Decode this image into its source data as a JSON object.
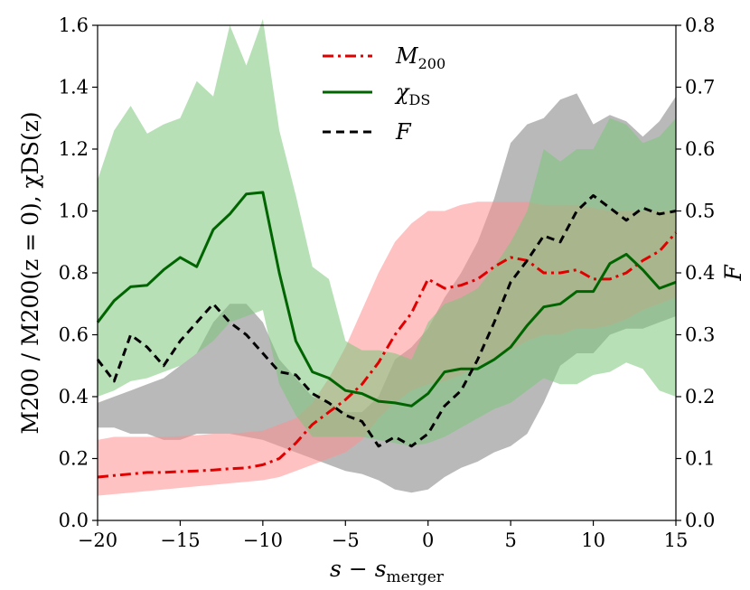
{
  "chart_data": {
    "type": "line",
    "xlabel": "s − s_merger",
    "xlabel_main": "s − s",
    "xlabel_sub": "merger",
    "ylabel_left": "M200 / M200(z = 0),  χDS(z)",
    "ylabel_right": "F",
    "xlim": [
      -20,
      15
    ],
    "ylim_left": [
      0.0,
      1.6
    ],
    "ylim_right": [
      0.0,
      0.8
    ],
    "x_ticks": [
      -20,
      -15,
      -10,
      -5,
      0,
      5,
      10,
      15
    ],
    "x_tick_labels": [
      "−20",
      "−15",
      "−10",
      "−5",
      "0",
      "5",
      "10",
      "15"
    ],
    "y_ticks_left": [
      0.0,
      0.2,
      0.4,
      0.6,
      0.8,
      1.0,
      1.2,
      1.4,
      1.6
    ],
    "y_tick_labels_left": [
      "0.0",
      "0.2",
      "0.4",
      "0.6",
      "0.8",
      "1.0",
      "1.2",
      "1.4",
      "1.6"
    ],
    "y_ticks_right": [
      0.0,
      0.1,
      0.2,
      0.3,
      0.4,
      0.5,
      0.6,
      0.7,
      0.8
    ],
    "y_tick_labels_right": [
      "0.0",
      "0.1",
      "0.2",
      "0.3",
      "0.4",
      "0.5",
      "0.6",
      "0.7",
      "0.8"
    ],
    "legend_position": "top-center",
    "x": [
      -20,
      -19,
      -18,
      -17,
      -16,
      -15,
      -14,
      -13,
      -12,
      -11,
      -10,
      -9,
      -8,
      -7,
      -6,
      -5,
      -4,
      -3,
      -2,
      -1,
      0,
      1,
      2,
      3,
      4,
      5,
      6,
      7,
      8,
      9,
      10,
      11,
      12,
      13,
      14,
      15
    ],
    "series": [
      {
        "name": "M200",
        "legend_main": "M",
        "legend_sub": "200",
        "axis": "left",
        "color": "#e00000",
        "linestyle": "dash-dot",
        "values": [
          0.14,
          0.145,
          0.15,
          0.155,
          0.155,
          0.158,
          0.16,
          0.163,
          0.167,
          0.17,
          0.18,
          0.2,
          0.25,
          0.31,
          0.35,
          0.39,
          0.44,
          0.51,
          0.6,
          0.67,
          0.78,
          0.75,
          0.76,
          0.78,
          0.82,
          0.85,
          0.84,
          0.8,
          0.8,
          0.81,
          0.78,
          0.78,
          0.8,
          0.84,
          0.87,
          0.93
        ],
        "band_lower": [
          0.08,
          0.085,
          0.09,
          0.095,
          0.1,
          0.105,
          0.11,
          0.115,
          0.12,
          0.125,
          0.13,
          0.14,
          0.16,
          0.18,
          0.2,
          0.22,
          0.26,
          0.33,
          0.38,
          0.42,
          0.44,
          0.45,
          0.47,
          0.5,
          0.52,
          0.55,
          0.58,
          0.6,
          0.6,
          0.62,
          0.62,
          0.63,
          0.65,
          0.68,
          0.7,
          0.72
        ],
        "band_upper": [
          0.26,
          0.27,
          0.27,
          0.27,
          0.27,
          0.272,
          0.275,
          0.28,
          0.28,
          0.285,
          0.29,
          0.31,
          0.33,
          0.38,
          0.46,
          0.56,
          0.68,
          0.8,
          0.9,
          0.96,
          1.0,
          1.0,
          1.02,
          1.03,
          1.03,
          1.03,
          1.03,
          1.02,
          1.02,
          1.02,
          1.01,
          1.0,
          1.0,
          1.0,
          1.0,
          1.0
        ]
      },
      {
        "name": "χDS",
        "legend_main": "χ",
        "legend_sub": "DS",
        "axis": "left",
        "color": "#006400",
        "linestyle": "solid",
        "values": [
          0.64,
          0.71,
          0.755,
          0.76,
          0.81,
          0.85,
          0.82,
          0.94,
          0.99,
          1.055,
          1.06,
          0.8,
          0.58,
          0.48,
          0.46,
          0.42,
          0.41,
          0.385,
          0.38,
          0.37,
          0.41,
          0.48,
          0.49,
          0.49,
          0.52,
          0.56,
          0.63,
          0.69,
          0.7,
          0.74,
          0.74,
          0.83,
          0.86,
          0.81,
          0.75,
          0.77
        ],
        "band_lower": [
          0.4,
          0.42,
          0.45,
          0.46,
          0.48,
          0.5,
          0.54,
          0.58,
          0.64,
          0.66,
          0.68,
          0.44,
          0.34,
          0.27,
          0.27,
          0.27,
          0.27,
          0.26,
          0.25,
          0.24,
          0.25,
          0.27,
          0.3,
          0.33,
          0.36,
          0.38,
          0.42,
          0.46,
          0.44,
          0.44,
          0.47,
          0.48,
          0.51,
          0.49,
          0.42,
          0.4
        ],
        "band_upper": [
          1.1,
          1.26,
          1.34,
          1.25,
          1.28,
          1.3,
          1.42,
          1.37,
          1.6,
          1.47,
          1.62,
          1.26,
          1.05,
          0.82,
          0.78,
          0.58,
          0.55,
          0.55,
          0.54,
          0.52,
          0.64,
          0.7,
          0.72,
          0.75,
          0.82,
          0.9,
          1.0,
          1.2,
          1.16,
          1.2,
          1.2,
          1.3,
          1.28,
          1.22,
          1.24,
          1.3
        ]
      },
      {
        "name": "F",
        "legend_main": "F",
        "legend_sub": "",
        "axis": "right",
        "color": "#000000",
        "linestyle": "dashed",
        "values": [
          0.26,
          0.225,
          0.3,
          0.28,
          0.25,
          0.29,
          0.32,
          0.35,
          0.32,
          0.3,
          0.27,
          0.24,
          0.235,
          0.205,
          0.19,
          0.17,
          0.16,
          0.12,
          0.135,
          0.12,
          0.14,
          0.185,
          0.21,
          0.26,
          0.32,
          0.385,
          0.42,
          0.46,
          0.45,
          0.5,
          0.525,
          0.505,
          0.485,
          0.505,
          0.495,
          0.5
        ],
        "band_lower": [
          0.15,
          0.15,
          0.14,
          0.14,
          0.13,
          0.13,
          0.14,
          0.14,
          0.14,
          0.135,
          0.13,
          0.12,
          0.11,
          0.1,
          0.09,
          0.08,
          0.075,
          0.065,
          0.05,
          0.045,
          0.05,
          0.07,
          0.085,
          0.095,
          0.11,
          0.12,
          0.14,
          0.19,
          0.25,
          0.27,
          0.27,
          0.3,
          0.31,
          0.31,
          0.32,
          0.33
        ],
        "band_upper": [
          0.19,
          0.2,
          0.21,
          0.22,
          0.23,
          0.25,
          0.27,
          0.32,
          0.35,
          0.35,
          0.32,
          0.26,
          0.23,
          0.2,
          0.19,
          0.175,
          0.175,
          0.2,
          0.26,
          0.28,
          0.31,
          0.36,
          0.4,
          0.45,
          0.52,
          0.61,
          0.64,
          0.65,
          0.68,
          0.69,
          0.64,
          0.655,
          0.645,
          0.62,
          0.645,
          0.685
        ]
      }
    ]
  }
}
